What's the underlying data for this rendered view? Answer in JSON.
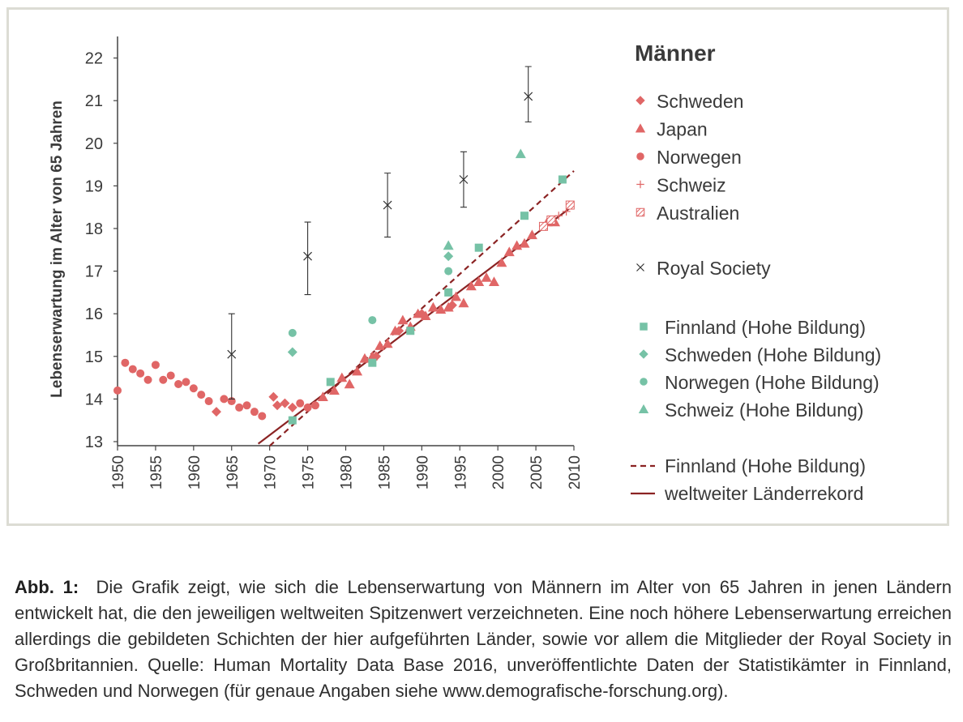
{
  "chart_data": {
    "type": "scatter",
    "title": "Männer",
    "ylabel": "Lebenserwartung im Alter von 65 Jahren",
    "xlabel": "",
    "xlim": [
      1950,
      2010
    ],
    "ylim": [
      13,
      22.5
    ],
    "x_ticks": [
      "1950",
      "1955",
      "1960",
      "1965",
      "1970",
      "1975",
      "1980",
      "1985",
      "1990",
      "1995",
      "2000",
      "2005",
      "2010"
    ],
    "y_ticks": [
      "13",
      "14",
      "15",
      "16",
      "17",
      "18",
      "19",
      "20",
      "21",
      "22"
    ],
    "grid": false,
    "legend_position": "right",
    "colors": {
      "record": "#e06666",
      "education": "#76c2a6",
      "line": "#8b2323",
      "marker_x": "#333333"
    },
    "record_series": [
      {
        "name": "Schweden",
        "marker": "diamond",
        "points": [
          [
            1963,
            13.7
          ],
          [
            1970.5,
            14.05
          ],
          [
            1971,
            13.85
          ],
          [
            1972,
            13.9
          ],
          [
            1973,
            13.8
          ],
          [
            1984,
            15.0
          ],
          [
            1987,
            15.6
          ],
          [
            1990,
            16.0
          ],
          [
            1994,
            16.2
          ]
        ]
      },
      {
        "name": "Japan",
        "marker": "triangle",
        "points": [
          [
            1977,
            14.05
          ],
          [
            1978.5,
            14.2
          ],
          [
            1979.5,
            14.5
          ],
          [
            1980.5,
            14.35
          ],
          [
            1981.5,
            14.65
          ],
          [
            1982.5,
            14.95
          ],
          [
            1983.5,
            15.0
          ],
          [
            1984.5,
            15.25
          ],
          [
            1985.5,
            15.3
          ],
          [
            1986.5,
            15.6
          ],
          [
            1987.5,
            15.85
          ],
          [
            1988.5,
            15.7
          ],
          [
            1989.5,
            16.0
          ],
          [
            1990.5,
            15.95
          ],
          [
            1991.5,
            16.15
          ],
          [
            1992.5,
            16.1
          ],
          [
            1993.5,
            16.15
          ],
          [
            1994.5,
            16.4
          ],
          [
            1995.5,
            16.25
          ],
          [
            1996.5,
            16.65
          ],
          [
            1997.5,
            16.75
          ],
          [
            1998.5,
            16.85
          ],
          [
            1999.5,
            16.75
          ],
          [
            2000.5,
            17.2
          ],
          [
            2001.5,
            17.45
          ],
          [
            2002.5,
            17.6
          ],
          [
            2003.5,
            17.65
          ],
          [
            2004.5,
            17.85
          ],
          [
            2006.5,
            18.15
          ],
          [
            2007.5,
            18.15
          ]
        ]
      },
      {
        "name": "Norwegen",
        "marker": "circle",
        "points": [
          [
            1950,
            14.2
          ],
          [
            1951,
            14.85
          ],
          [
            1952,
            14.7
          ],
          [
            1953,
            14.6
          ],
          [
            1954,
            14.45
          ],
          [
            1955,
            14.8
          ],
          [
            1956,
            14.45
          ],
          [
            1957,
            14.55
          ],
          [
            1958,
            14.35
          ],
          [
            1959,
            14.4
          ],
          [
            1960,
            14.25
          ],
          [
            1961,
            14.1
          ],
          [
            1962,
            13.95
          ],
          [
            1964,
            14.0
          ],
          [
            1965,
            13.95
          ],
          [
            1966,
            13.8
          ],
          [
            1967,
            13.85
          ],
          [
            1968,
            13.7
          ],
          [
            1969,
            13.6
          ],
          [
            1974,
            13.9
          ],
          [
            1975,
            13.8
          ],
          [
            1976,
            13.85
          ]
        ]
      },
      {
        "name": "Schweiz",
        "marker": "plus",
        "points": [
          [
            2008,
            18.3
          ],
          [
            2009,
            18.4
          ]
        ]
      },
      {
        "name": "Australien",
        "marker": "hatched-square",
        "points": [
          [
            2006,
            18.05
          ],
          [
            2007,
            18.2
          ],
          [
            2009.5,
            18.55
          ]
        ]
      }
    ],
    "royal_society": {
      "name": "Royal Society",
      "marker": "x",
      "points": [
        {
          "x": 1965,
          "y": 15.05,
          "lo": 14.0,
          "hi": 16.0
        },
        {
          "x": 1975,
          "y": 17.35,
          "lo": 16.45,
          "hi": 18.15
        },
        {
          "x": 1985.5,
          "y": 18.55,
          "lo": 17.8,
          "hi": 19.3
        },
        {
          "x": 1995.5,
          "y": 19.15,
          "lo": 18.5,
          "hi": 19.8
        },
        {
          "x": 2004,
          "y": 21.1,
          "lo": 20.5,
          "hi": 21.8
        }
      ]
    },
    "education_series": [
      {
        "name": "Finnland (Hohe Bildung)",
        "marker": "square",
        "points": [
          [
            1973,
            13.5
          ],
          [
            1978,
            14.4
          ],
          [
            1983.5,
            14.85
          ],
          [
            1988.5,
            15.6
          ],
          [
            1993.5,
            16.5
          ],
          [
            1997.5,
            17.55
          ],
          [
            2003.5,
            18.3
          ],
          [
            2008.5,
            19.15
          ]
        ]
      },
      {
        "name": "Schweden (Hohe Bildung)",
        "marker": "diamond",
        "points": [
          [
            1973,
            15.1
          ],
          [
            1993.5,
            17.35
          ]
        ]
      },
      {
        "name": "Norwegen (Hohe Bildung)",
        "marker": "circle",
        "points": [
          [
            1973,
            15.55
          ],
          [
            1983.5,
            15.85
          ],
          [
            1993.5,
            17.0
          ]
        ]
      },
      {
        "name": "Schweiz (Hohe Bildung)",
        "marker": "triangle",
        "points": [
          [
            1993.5,
            17.6
          ],
          [
            2003,
            19.75
          ]
        ]
      }
    ],
    "trend_lines": [
      {
        "name": "Finnland (Hohe Bildung)",
        "style": "dashed",
        "from": [
          1970,
          12.9
        ],
        "to": [
          2010,
          19.35
        ]
      },
      {
        "name": "weltweiter Länderrekord",
        "style": "solid",
        "from": [
          1968.5,
          12.95
        ],
        "to": [
          2010,
          18.55
        ]
      }
    ]
  },
  "caption": {
    "label": "Abb. 1:",
    "text": "Die Grafik zeigt, wie sich die Lebenserwartung von Männern im Alter von 65 Jahren in jenen Ländern entwickelt hat, die den jeweiligen weltweiten Spitzenwert verzeichneten. Eine noch höhere Lebenserwartung erreichen allerdings die gebildeten Schichten der hier aufgeführten Länder, sowie vor allem die Mitglieder der Royal Society in Großbritannien. Quelle: Human Mortality Data Base 2016, unveröffentlichte Daten der Statistikämter in Finnland, Schweden und Norwegen (für genaue Angaben siehe www.demografische-forschung.org)."
  }
}
